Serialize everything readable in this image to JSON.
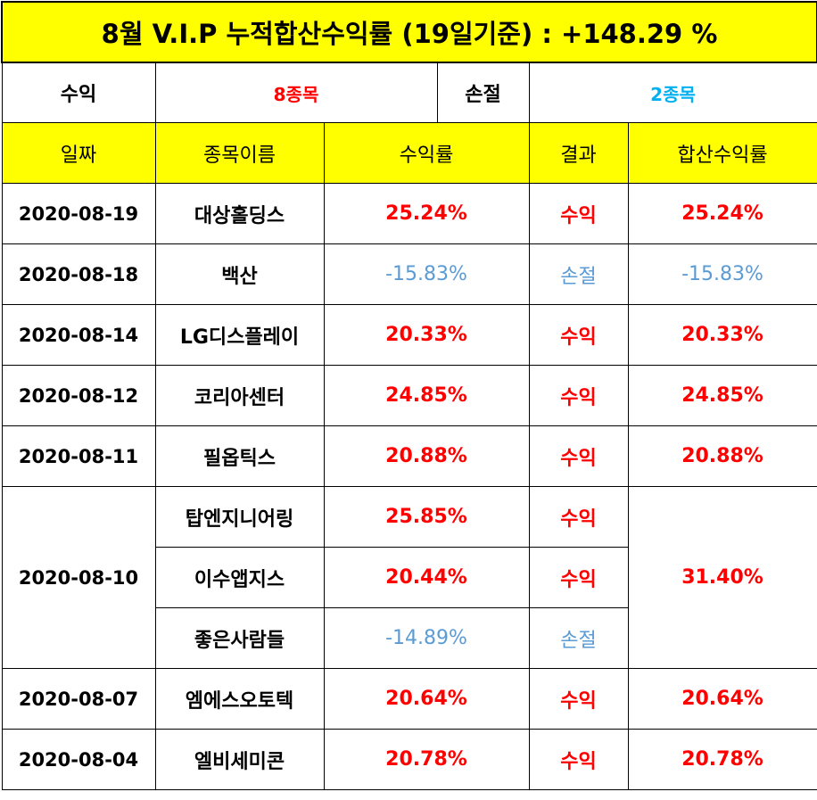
{
  "title": "8월 V.I.P 누적합산수익률 (19일기준) : +148.29 %",
  "summary": {
    "profit_label": "수익",
    "profit_value": "8종목",
    "loss_label": "손절",
    "loss_value": "2종목"
  },
  "columns": [
    "일짜",
    "종목이름",
    "수익률",
    "결과",
    "합산수익률"
  ],
  "rows": [
    {
      "date": "2020-08-19",
      "name": "대상홀딩스",
      "rate": "25.24%",
      "result": "수익",
      "total": "25.24%",
      "profit": true
    },
    {
      "date": "2020-08-18",
      "name": "백산",
      "rate": "-15.83%",
      "result": "손절",
      "total": "-15.83%",
      "profit": false
    },
    {
      "date": "2020-08-14",
      "name": "LG디스플레이",
      "rate": "20.33%",
      "result": "수익",
      "total": "20.33%",
      "profit": true
    },
    {
      "date": "2020-08-12",
      "name": "코리아센터",
      "rate": "24.85%",
      "result": "수익",
      "total": "24.85%",
      "profit": true
    },
    {
      "date": "2020-08-11",
      "name": "필옵틱스",
      "rate": "20.88%",
      "result": "수익",
      "total": "20.88%",
      "profit": true
    }
  ],
  "group": {
    "date": "2020-08-10",
    "total": "31.40%",
    "items": [
      {
        "name": "탑엔지니어링",
        "rate": "25.85%",
        "result": "수익",
        "profit": true
      },
      {
        "name": "이수앱지스",
        "rate": "20.44%",
        "result": "수익",
        "profit": true
      },
      {
        "name": "좋은사람들",
        "rate": "-14.89%",
        "result": "손절",
        "profit": false
      }
    ]
  },
  "rows_after": [
    {
      "date": "2020-08-07",
      "name": "엠에스오토텍",
      "rate": "20.64%",
      "result": "수익",
      "total": "20.64%",
      "profit": true
    },
    {
      "date": "2020-08-04",
      "name": "엘비세미콘",
      "rate": "20.78%",
      "result": "수익",
      "total": "20.78%",
      "profit": true
    }
  ],
  "colors": {
    "header_bg": "#ffff00",
    "profit": "#ff0000",
    "loss": "#5b9bd5",
    "loss_summary": "#00b0f0"
  }
}
